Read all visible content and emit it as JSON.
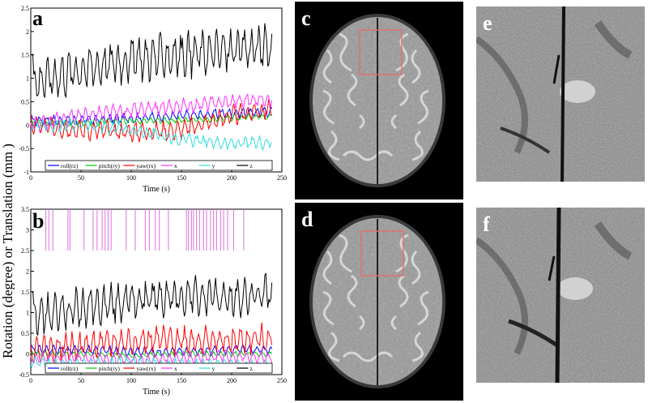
{
  "figure": {
    "y_axis_label": "Rotation (degree) or Translation (mm  )",
    "panels": {
      "a": "a",
      "b": "b",
      "c": "c",
      "d": "d",
      "e": "e",
      "f": "f"
    }
  },
  "chart_data": [
    {
      "panel": "a",
      "type": "line",
      "xlabel": "Time (s)",
      "xlim": [
        0,
        250
      ],
      "ylim": [
        -1,
        2.5
      ],
      "xticks": [
        "0",
        "50",
        "100",
        "150",
        "200",
        "250"
      ],
      "yticks": [
        "-1",
        "-0.5",
        "0",
        "0.5",
        "1",
        "1.5",
        "2",
        "2.5"
      ],
      "legend_position": "bottom",
      "series": [
        {
          "name": "roll(rz)",
          "color": "#0000ff",
          "base": [
            0.1,
            0.1,
            0.15,
            0.2,
            0.25,
            0.3
          ],
          "amp": 0.08
        },
        {
          "name": "pitch(ry)",
          "color": "#00cc00",
          "base": [
            0.05,
            0.05,
            0.1,
            0.1,
            0.15,
            0.2
          ],
          "amp": 0.05
        },
        {
          "name": "yaw(rx)",
          "color": "#ff0000",
          "base": [
            0.0,
            -0.1,
            -0.15,
            -0.1,
            0.2,
            0.4
          ],
          "amp": 0.15
        },
        {
          "name": "x",
          "color": "#ff33ff",
          "base": [
            0.0,
            0.2,
            0.3,
            0.4,
            0.5,
            0.6
          ],
          "amp": 0.12
        },
        {
          "name": "y",
          "color": "#33dddd",
          "base": [
            0.0,
            0.0,
            -0.1,
            -0.3,
            -0.4,
            -0.35
          ],
          "amp": 0.1
        },
        {
          "name": "z",
          "color": "#000000",
          "base": [
            0.9,
            1.2,
            1.4,
            1.5,
            1.6,
            1.7
          ],
          "amp": 0.35
        }
      ]
    },
    {
      "panel": "b",
      "type": "line",
      "xlabel": "Time (s)",
      "xlim": [
        0,
        250
      ],
      "ylim": [
        -0.5,
        3.5
      ],
      "xticks": [
        "0",
        "50",
        "100",
        "150",
        "200",
        "250"
      ],
      "yticks": [
        "-0.5",
        "0",
        "0.5",
        "1",
        "1.5",
        "2",
        "2.5",
        "3",
        "3.5"
      ],
      "legend_position": "bottom",
      "event_marker_times": [
        15,
        18,
        22,
        37,
        39,
        53,
        62,
        66,
        71,
        74,
        77,
        80,
        95,
        104,
        114,
        118,
        124,
        128,
        137,
        155,
        157,
        160,
        162,
        165,
        168,
        172,
        175,
        179,
        182,
        185,
        189,
        192,
        196,
        202,
        212
      ],
      "series": [
        {
          "name": "roll(rz)",
          "color": "#0000ff",
          "base": [
            0.1,
            0.1,
            0.05,
            0.05,
            0.1,
            0.1
          ],
          "amp": 0.08
        },
        {
          "name": "pitch(ry)",
          "color": "#00cc00",
          "base": [
            0.0,
            0.0,
            -0.05,
            0.0,
            0.0,
            0.0
          ],
          "amp": 0.05
        },
        {
          "name": "yaw(rx)",
          "color": "#ff0000",
          "base": [
            0.1,
            0.2,
            0.3,
            0.35,
            0.3,
            0.4
          ],
          "amp": 0.25
        },
        {
          "name": "x",
          "color": "#ff33ff",
          "base": [
            -0.1,
            -0.1,
            -0.15,
            -0.1,
            -0.05,
            -0.1
          ],
          "amp": 0.1
        },
        {
          "name": "y",
          "color": "#33dddd",
          "base": [
            -0.2,
            -0.25,
            -0.2,
            -0.25,
            -0.25,
            -0.3
          ],
          "amp": 0.1
        },
        {
          "name": "z",
          "color": "#000000",
          "base": [
            0.9,
            1.1,
            1.3,
            1.4,
            1.35,
            1.5
          ],
          "amp": 0.35
        }
      ]
    }
  ]
}
